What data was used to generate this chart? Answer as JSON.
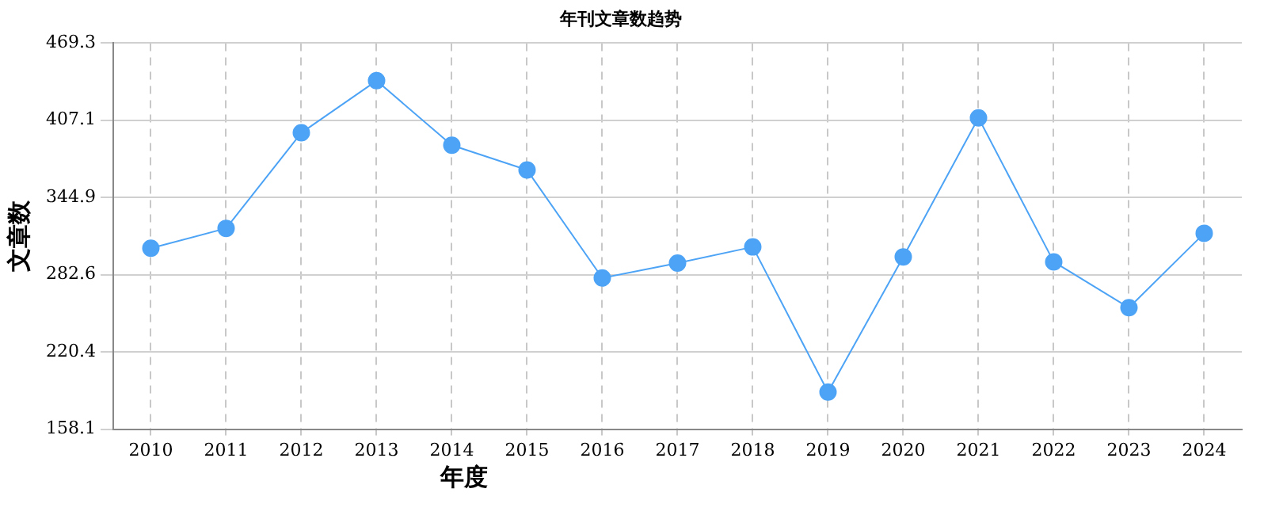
{
  "chart_data": {
    "type": "line",
    "title": "年刊文章数趋势",
    "xlabel": "年度",
    "ylabel": "文章数",
    "categories": [
      "2010",
      "2011",
      "2012",
      "2013",
      "2014",
      "2015",
      "2016",
      "2017",
      "2018",
      "2019",
      "2020",
      "2021",
      "2022",
      "2023",
      "2024"
    ],
    "series": [
      {
        "color": "#4da3f5",
        "values": [
          304,
          320,
          397,
          439,
          387,
          367,
          280,
          292,
          305,
          188,
          297,
          409,
          293,
          256,
          316
        ]
      }
    ],
    "ylim": [
      158.1,
      469.3
    ],
    "yticks": [
      158.1,
      220.4,
      282.6,
      344.9,
      407.1,
      469.3
    ],
    "grid": true,
    "marker": "circle",
    "line_style": "solid",
    "legend": false
  }
}
